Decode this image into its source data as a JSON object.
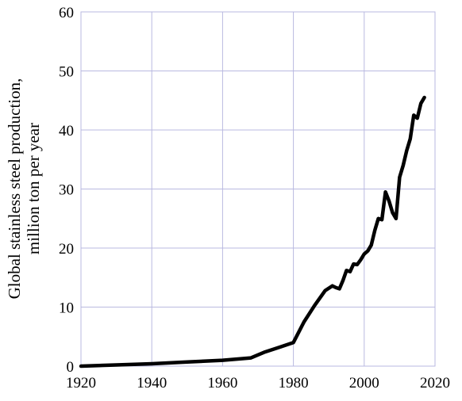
{
  "chart_data": {
    "type": "line",
    "title": "",
    "xlabel": "",
    "ylabel_lines": [
      "Global stainless steel production,",
      "million ton per year"
    ],
    "xlim": [
      1920,
      2020
    ],
    "ylim": [
      0,
      60
    ],
    "x_ticks": [
      "1920",
      "1940",
      "1960",
      "1980",
      "2000",
      "2020"
    ],
    "y_ticks": [
      "0",
      "10",
      "20",
      "30",
      "40",
      "50",
      "60"
    ],
    "grid": true,
    "series": [
      {
        "x": [
          1920,
          1930,
          1940,
          1950,
          1960,
          1968,
          1972,
          1976,
          1980,
          1983,
          1986,
          1989,
          1991,
          1992,
          1993,
          1994,
          1995,
          1996,
          1997,
          1998,
          1999,
          2000,
          2001,
          2002,
          2003,
          2004,
          2005,
          2006,
          2007,
          2008,
          2009,
          2010,
          2011,
          2012,
          2013,
          2014,
          2015,
          2016,
          2017
        ],
        "y": [
          0,
          0.2,
          0.4,
          0.7,
          1.0,
          1.4,
          2.4,
          3.2,
          4.0,
          7.5,
          10.3,
          12.8,
          13.6,
          13.3,
          13.1,
          14.5,
          16.2,
          16.0,
          17.3,
          17.2,
          18.0,
          19.0,
          19.5,
          20.5,
          23.0,
          25.0,
          24.8,
          29.5,
          28.0,
          26.0,
          25.0,
          32.0,
          34.0,
          36.5,
          38.5,
          42.5,
          42.0,
          44.5,
          45.5
        ],
        "color": "#000000"
      }
    ]
  }
}
